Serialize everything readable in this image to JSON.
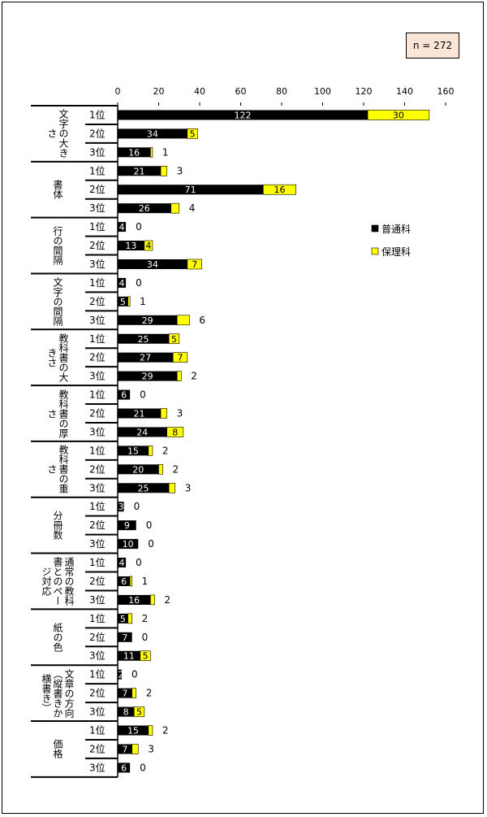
{
  "annotation": "n = 272",
  "chart_data": {
    "type": "bar",
    "orientation": "horizontal",
    "stacked": true,
    "xlim": [
      0,
      160
    ],
    "xticks": [
      0,
      20,
      40,
      60,
      80,
      100,
      120,
      140,
      160
    ],
    "grid": false,
    "legend_placement": "right",
    "rank_labels": [
      "1位",
      "2位",
      "3位"
    ],
    "series": [
      {
        "name": "普通科",
        "color": "#000000"
      },
      {
        "name": "保理科",
        "color": "#ffff00"
      }
    ],
    "groups": [
      {
        "label": "文字の大きさ",
        "values": [
          [
            122,
            30
          ],
          [
            34,
            5
          ],
          [
            16,
            1
          ]
        ]
      },
      {
        "label": "書体",
        "values": [
          [
            21,
            3
          ],
          [
            71,
            16
          ],
          [
            26,
            4
          ]
        ]
      },
      {
        "label": "行の間隔",
        "values": [
          [
            4,
            0
          ],
          [
            13,
            4
          ],
          [
            34,
            7
          ]
        ]
      },
      {
        "label": "文字の間隔",
        "values": [
          [
            4,
            0
          ],
          [
            5,
            1
          ],
          [
            29,
            6
          ]
        ]
      },
      {
        "label": "教科書の大きさ",
        "values": [
          [
            25,
            5
          ],
          [
            27,
            7
          ],
          [
            29,
            2
          ]
        ]
      },
      {
        "label": "教科書の厚さ",
        "values": [
          [
            6,
            0
          ],
          [
            21,
            3
          ],
          [
            24,
            8
          ]
        ]
      },
      {
        "label": "教科書の重さ",
        "values": [
          [
            15,
            2
          ],
          [
            20,
            2
          ],
          [
            25,
            3
          ]
        ]
      },
      {
        "label": "分冊数",
        "values": [
          [
            3,
            0
          ],
          [
            9,
            0
          ],
          [
            10,
            0
          ]
        ]
      },
      {
        "label": "通常の教科書とのページ対応",
        "values": [
          [
            4,
            0
          ],
          [
            6,
            1
          ],
          [
            16,
            2
          ]
        ]
      },
      {
        "label": "紙の色",
        "values": [
          [
            5,
            2
          ],
          [
            7,
            0
          ],
          [
            11,
            5
          ]
        ]
      },
      {
        "label": "文章の方向（縦書きか横書き）",
        "values": [
          [
            2,
            0
          ],
          [
            7,
            2
          ],
          [
            8,
            5
          ]
        ]
      },
      {
        "label": "価格",
        "values": [
          [
            15,
            2
          ],
          [
            7,
            3
          ],
          [
            6,
            0
          ]
        ]
      }
    ]
  }
}
